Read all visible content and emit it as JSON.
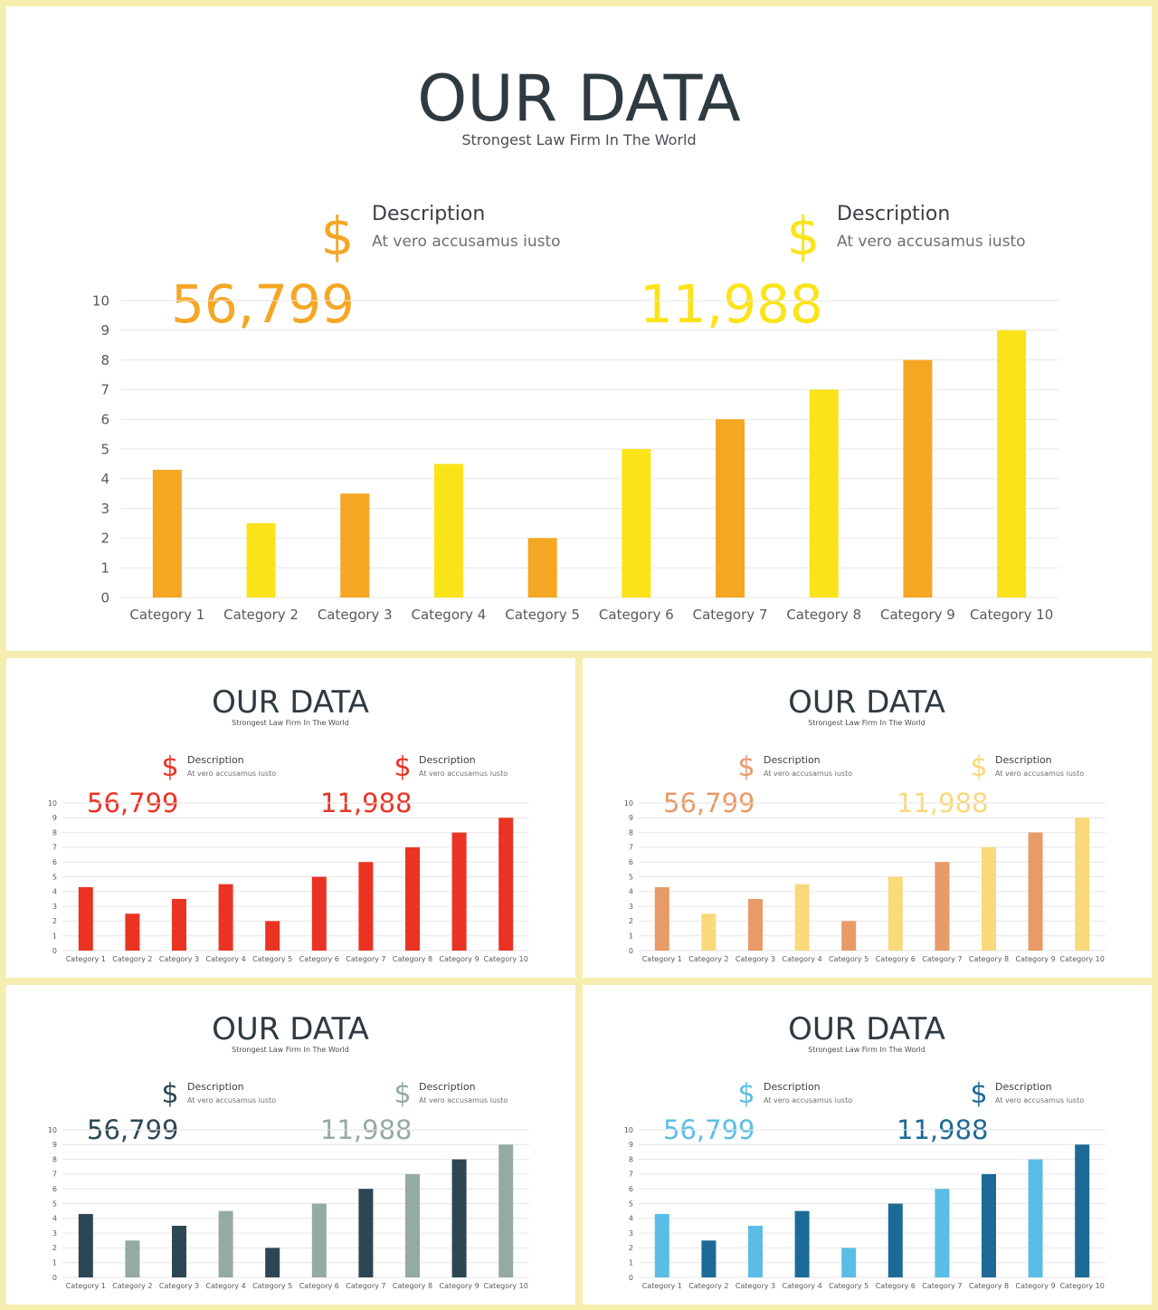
{
  "slides": [
    {
      "id": "main",
      "title": "OUR DATA",
      "subtitle": "Strongest  Law Firm  In  The  World",
      "stat_1": {
        "heading": "Description",
        "text": "At vero accusamus  iusto",
        "value": "56,799",
        "color": "#f5a623"
      },
      "stat_2": {
        "heading": "Description",
        "text": "At vero accusamus  iusto",
        "value": "11,988",
        "color": "#fbe31a"
      }
    },
    {
      "id": "red",
      "title": "OUR DATA",
      "subtitle": "Strongest  Law Firm  In  The  World",
      "stat_1": {
        "heading": "Description",
        "text": "At vero accusamus  iusto",
        "value": "56,799",
        "color": "#ea3323"
      },
      "stat_2": {
        "heading": "Description",
        "text": "At vero accusamus  iusto",
        "value": "11,988",
        "color": "#ea3323"
      }
    },
    {
      "id": "peach",
      "title": "OUR DATA",
      "subtitle": "Strongest  Law Firm  In  The  World",
      "stat_1": {
        "heading": "Description",
        "text": "At vero accusamus  iusto",
        "value": "56,799",
        "color": "#e89a68"
      },
      "stat_2": {
        "heading": "Description",
        "text": "At vero accusamus  iusto",
        "value": "11,988",
        "color": "#fad97a"
      }
    },
    {
      "id": "slate",
      "title": "OUR DATA",
      "subtitle": "Strongest  Law Firm  In  The  World",
      "stat_1": {
        "heading": "Description",
        "text": "At vero accusamus  iusto",
        "value": "56,799",
        "color": "#2d4654"
      },
      "stat_2": {
        "heading": "Description",
        "text": "At vero accusamus  iusto",
        "value": "11,988",
        "color": "#95aaa0"
      }
    },
    {
      "id": "blue",
      "title": "OUR DATA",
      "subtitle": "Strongest  Law Firm  In  The  World",
      "stat_1": {
        "heading": "Description",
        "text": "At vero accusamus  iusto",
        "value": "56,799",
        "color": "#5bbde6"
      },
      "stat_2": {
        "heading": "Description",
        "text": "At vero accusamus  iusto",
        "value": "11,988",
        "color": "#1d6a96"
      }
    }
  ],
  "chart_data": [
    {
      "chart_id": "main",
      "type": "bar",
      "categories": [
        "Category 1",
        "Category 2",
        "Category 3",
        "Category 4",
        "Category 5",
        "Category 6",
        "Category 7",
        "Category 8",
        "Category 9",
        "Category 10"
      ],
      "values": [
        4.3,
        2.5,
        3.5,
        4.5,
        2,
        5,
        6,
        7,
        8,
        9
      ],
      "ylim": [
        0,
        10
      ],
      "yticks": [
        "0",
        "1",
        "2",
        "3",
        "4",
        "5",
        "6",
        "7",
        "8",
        "9",
        "10"
      ],
      "grid": true,
      "bar_colors": [
        "#f5a623",
        "#fbe31a"
      ]
    },
    {
      "chart_id": "red",
      "type": "bar",
      "categories": [
        "Category 1",
        "Category 2",
        "Category 3",
        "Category 4",
        "Category 5",
        "Category 6",
        "Category 7",
        "Category 8",
        "Category 9",
        "Category 10"
      ],
      "values": [
        4.3,
        2.5,
        3.5,
        4.5,
        2,
        5,
        6,
        7,
        8,
        9
      ],
      "ylim": [
        0,
        10
      ],
      "yticks": [
        "0",
        "1",
        "2",
        "3",
        "4",
        "5",
        "6",
        "7",
        "8",
        "9",
        "10"
      ],
      "grid": true,
      "bar_colors": [
        "#ea3323",
        "#ea3323"
      ]
    },
    {
      "chart_id": "peach",
      "type": "bar",
      "categories": [
        "Category 1",
        "Category 2",
        "Category 3",
        "Category 4",
        "Category 5",
        "Category 6",
        "Category 7",
        "Category 8",
        "Category 9",
        "Category 10"
      ],
      "values": [
        4.3,
        2.5,
        3.5,
        4.5,
        2,
        5,
        6,
        7,
        8,
        9
      ],
      "ylim": [
        0,
        10
      ],
      "yticks": [
        "0",
        "1",
        "2",
        "3",
        "4",
        "5",
        "6",
        "7",
        "8",
        "9",
        "10"
      ],
      "grid": true,
      "bar_colors": [
        "#e89a68",
        "#fad97a"
      ]
    },
    {
      "chart_id": "slate",
      "type": "bar",
      "categories": [
        "Category 1",
        "Category 2",
        "Category 3",
        "Category 4",
        "Category 5",
        "Category 6",
        "Category 7",
        "Category 8",
        "Category 9",
        "Category 10"
      ],
      "values": [
        4.3,
        2.5,
        3.5,
        4.5,
        2,
        5,
        6,
        7,
        8,
        9
      ],
      "ylim": [
        0,
        10
      ],
      "yticks": [
        "0",
        "1",
        "2",
        "3",
        "4",
        "5",
        "6",
        "7",
        "8",
        "9",
        "10"
      ],
      "grid": true,
      "bar_colors": [
        "#2d4654",
        "#95aaa0"
      ]
    },
    {
      "chart_id": "blue",
      "type": "bar",
      "categories": [
        "Category 1",
        "Category 2",
        "Category 3",
        "Category 4",
        "Category 5",
        "Category 6",
        "Category 7",
        "Category 8",
        "Category 9",
        "Category 10"
      ],
      "values": [
        4.3,
        2.5,
        3.5,
        4.5,
        2,
        5,
        6,
        7,
        8,
        9
      ],
      "ylim": [
        0,
        10
      ],
      "yticks": [
        "0",
        "1",
        "2",
        "3",
        "4",
        "5",
        "6",
        "7",
        "8",
        "9",
        "10"
      ],
      "grid": true,
      "bar_colors": [
        "#5bbde6",
        "#1d6a96"
      ]
    }
  ]
}
